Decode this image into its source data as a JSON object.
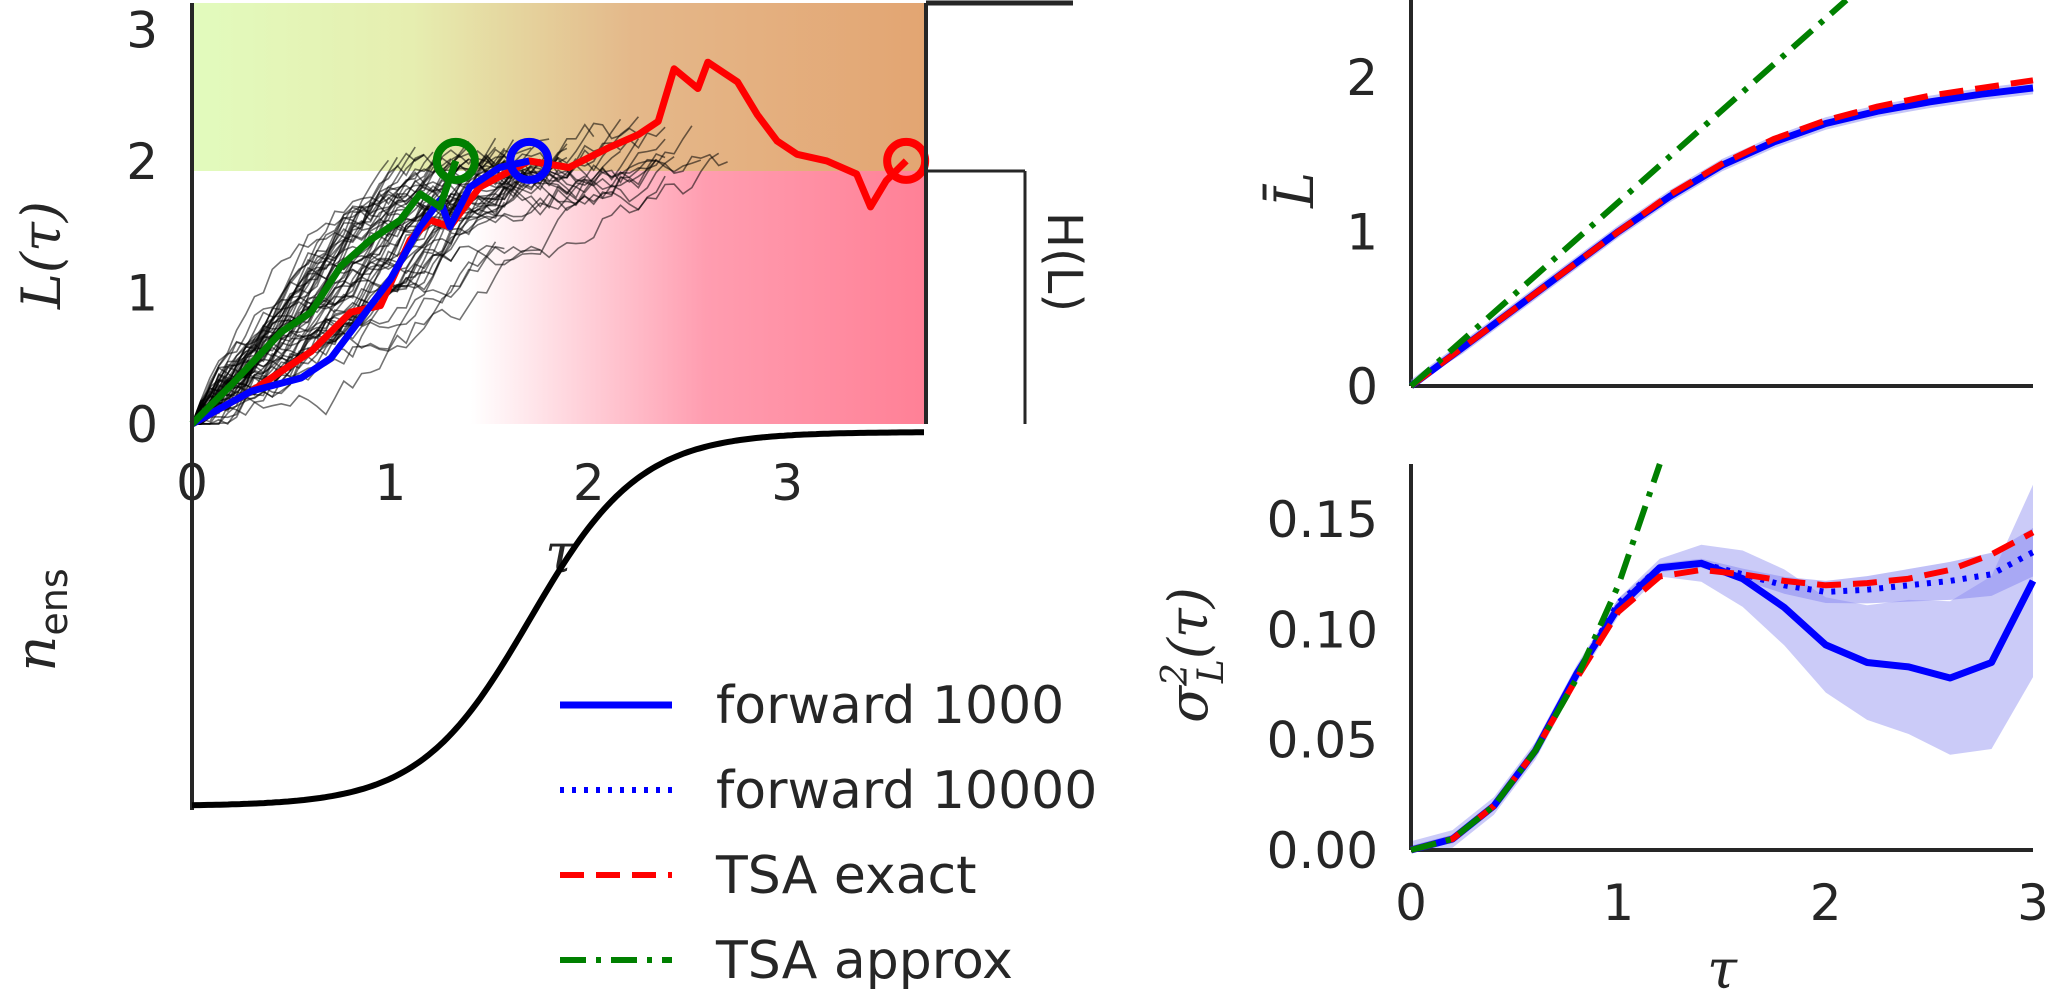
{
  "chart_data": [
    {
      "id": "trajectories",
      "type": "line",
      "ylabel": "L(τ)",
      "xlabel": "τ",
      "xlim": [
        0,
        3.7
      ],
      "ylim": [
        0,
        3.2
      ],
      "xticks": [
        "0",
        "1",
        "2",
        "3"
      ],
      "yticks": [
        "0",
        "1",
        "2",
        "3"
      ],
      "side_label": "H(L)",
      "threshold": 2,
      "highlight_series": [
        {
          "color": "#ff0000",
          "end_x": 3.6,
          "end_y": 2.0
        },
        {
          "color": "#0000ff",
          "end_x": 1.7,
          "end_y": 2.0
        },
        {
          "color": "#008000",
          "end_x": 1.33,
          "end_y": 2.0
        }
      ],
      "background_series_count": 60
    },
    {
      "id": "ensemble",
      "type": "line",
      "ylabel": "n_ens",
      "description_curve": "sigmoid"
    },
    {
      "id": "mean",
      "type": "line",
      "ylabel": "L̄",
      "xlim": [
        0,
        3
      ],
      "ylim": [
        0,
        2.5
      ],
      "xticks": [
        "0",
        "1",
        "2",
        "3"
      ],
      "yticks": [
        "0",
        "1",
        "2"
      ],
      "series": [
        {
          "name": "forward 1000",
          "x": [
            0,
            0.25,
            0.5,
            0.75,
            1.0,
            1.25,
            1.5,
            1.75,
            2.0,
            2.25,
            2.5,
            2.75,
            3.0
          ],
          "values": [
            0,
            0.25,
            0.5,
            0.75,
            1.0,
            1.23,
            1.43,
            1.58,
            1.7,
            1.78,
            1.84,
            1.89,
            1.93
          ]
        },
        {
          "name": "TSA exact",
          "x": [
            0,
            0.25,
            0.5,
            0.75,
            1.0,
            1.25,
            1.5,
            1.75,
            2.0,
            2.25,
            2.5,
            2.75,
            3.0
          ],
          "values": [
            0,
            0.25,
            0.5,
            0.75,
            1.0,
            1.24,
            1.44,
            1.6,
            1.72,
            1.81,
            1.88,
            1.93,
            1.98
          ]
        },
        {
          "name": "TSA approx",
          "x": [
            0,
            2.1
          ],
          "values": [
            0,
            2.5
          ]
        }
      ]
    },
    {
      "id": "variance",
      "type": "line",
      "ylabel": "σ²_L(τ)",
      "xlabel": "τ",
      "xlim": [
        0,
        3
      ],
      "ylim": [
        0,
        0.175
      ],
      "xticks": [
        "0",
        "1",
        "2",
        "3"
      ],
      "yticks": [
        "0.00",
        "0.05",
        "0.10",
        "0.15"
      ],
      "series": [
        {
          "name": "forward 1000",
          "x": [
            0,
            0.2,
            0.4,
            0.6,
            0.8,
            1.0,
            1.2,
            1.4,
            1.6,
            1.8,
            2.0,
            2.2,
            2.4,
            2.6,
            2.8,
            3.0
          ],
          "values": [
            0,
            0.005,
            0.02,
            0.045,
            0.08,
            0.11,
            0.128,
            0.13,
            0.123,
            0.11,
            0.093,
            0.085,
            0.083,
            0.078,
            0.085,
            0.122
          ]
        },
        {
          "name": "forward 10000",
          "x": [
            0,
            0.2,
            0.4,
            0.6,
            0.8,
            1.0,
            1.2,
            1.4,
            1.6,
            1.8,
            2.0,
            2.2,
            2.4,
            2.6,
            2.8,
            3.0
          ],
          "values": [
            0,
            0.005,
            0.02,
            0.045,
            0.08,
            0.112,
            0.128,
            0.13,
            0.125,
            0.12,
            0.117,
            0.118,
            0.12,
            0.122,
            0.125,
            0.135
          ]
        },
        {
          "name": "TSA exact",
          "x": [
            0,
            0.2,
            0.4,
            0.6,
            0.8,
            1.0,
            1.2,
            1.4,
            1.6,
            1.8,
            2.0,
            2.2,
            2.4,
            2.6,
            2.8,
            3.0
          ],
          "values": [
            0,
            0.005,
            0.02,
            0.045,
            0.078,
            0.108,
            0.124,
            0.127,
            0.125,
            0.122,
            0.12,
            0.121,
            0.123,
            0.127,
            0.134,
            0.144
          ]
        },
        {
          "name": "TSA approx",
          "x": [
            0,
            0.2,
            0.4,
            0.6,
            0.8,
            1.0,
            1.2
          ],
          "values": [
            0,
            0.005,
            0.02,
            0.045,
            0.078,
            0.12,
            0.175
          ]
        }
      ]
    }
  ],
  "legend": [
    {
      "label": "forward 1000",
      "color": "#0000ff",
      "style": "solid"
    },
    {
      "label": "forward 10000",
      "color": "#0000ff",
      "style": "dotted"
    },
    {
      "label": "TSA exact",
      "color": "#ff0000",
      "style": "dashed"
    },
    {
      "label": "TSA approx",
      "color": "#008000",
      "style": "dashdot"
    }
  ],
  "colors": {
    "forward": "#0000ff",
    "tsa_exact": "#ff0000",
    "tsa_approx": "#008000",
    "band": "#8c8cf0"
  }
}
